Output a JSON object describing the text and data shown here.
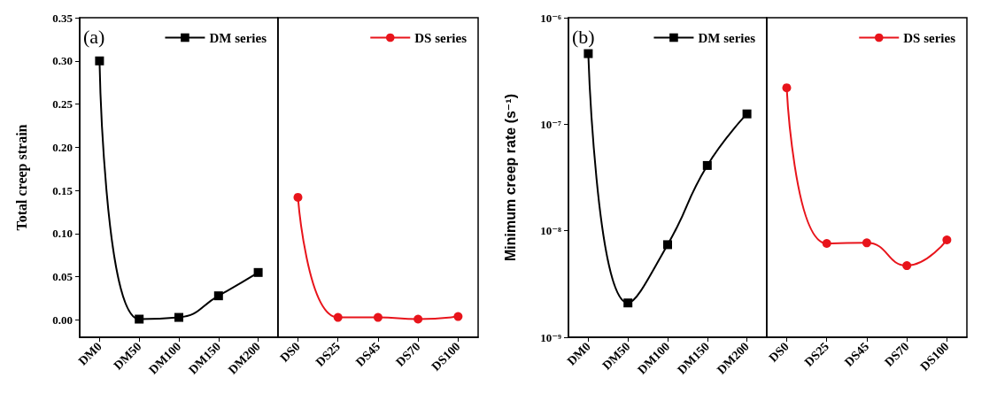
{
  "chart_data": [
    {
      "type": "line",
      "ylabel": "Total creep strain",
      "annotations": [
        "(a)"
      ],
      "categories": [
        "DM0",
        "DM50",
        "DM100",
        "DM150",
        "DM200"
      ],
      "series": [
        {
          "name": "DM series",
          "color": "#000000",
          "marker": "square",
          "values": [
            0.3,
            0.001,
            0.003,
            0.028,
            0.055
          ]
        }
      ],
      "ylim": [
        -0.02,
        0.35
      ],
      "yticks": [
        {
          "value": 0,
          "label": "0.00"
        },
        {
          "value": 0.05,
          "label": "0.05"
        },
        {
          "value": 0.1,
          "label": "0.10"
        },
        {
          "value": 0.15,
          "label": "0.15"
        },
        {
          "value": 0.2,
          "label": "0.20"
        },
        {
          "value": 0.25,
          "label": "0.25"
        },
        {
          "value": 0.3,
          "label": "0.30"
        },
        {
          "value": 0.35,
          "label": "0.35"
        }
      ],
      "grid": false,
      "legend": "top right"
    },
    {
      "type": "line",
      "categories": [
        "DS0",
        "DS25",
        "DS45",
        "DS70",
        "DS100"
      ],
      "series": [
        {
          "name": "DS series",
          "color": "#e8141b",
          "marker": "circle",
          "values": [
            0.142,
            0.003,
            0.003,
            0.001,
            0.004
          ]
        }
      ],
      "ylim": [
        -0.02,
        0.35
      ],
      "tick_labels": "x",
      "grid": false,
      "legend": "top right"
    },
    {
      "type": "line",
      "ylabel": "Minimum creep rate (s⁻¹)",
      "annotations": [
        "(b)"
      ],
      "categories": [
        "DM0",
        "DM50",
        "DM100",
        "DM150",
        "DM200"
      ],
      "series": [
        {
          "name": "DM series",
          "color": "#000000",
          "marker": "square",
          "values": [
            4.6e-07,
            2.1e-09,
            7.4e-09,
            4.1e-08,
            1.25e-07
          ]
        }
      ],
      "log": "y",
      "ylim": [
        1e-09,
        1e-06
      ],
      "yticks": [
        {
          "value": 1e-09,
          "label": "10⁻⁹"
        },
        {
          "value": 1e-08,
          "label": "10⁻⁸"
        },
        {
          "value": 1e-07,
          "label": "10⁻⁷"
        },
        {
          "value": 1e-06,
          "label": "10⁻⁶"
        }
      ],
      "grid": false,
      "legend": "top right"
    },
    {
      "type": "line",
      "categories": [
        "DS0",
        "DS25",
        "DS45",
        "DS70",
        "DS100"
      ],
      "series": [
        {
          "name": "DS series",
          "color": "#e8141b",
          "marker": "circle",
          "values": [
            2.2e-07,
            7.6e-09,
            7.7e-09,
            4.7e-09,
            8.2e-09
          ]
        }
      ],
      "log": "y",
      "ylim": [
        1e-09,
        1e-06
      ],
      "tick_labels": "x",
      "grid": false,
      "legend": "top right"
    }
  ]
}
